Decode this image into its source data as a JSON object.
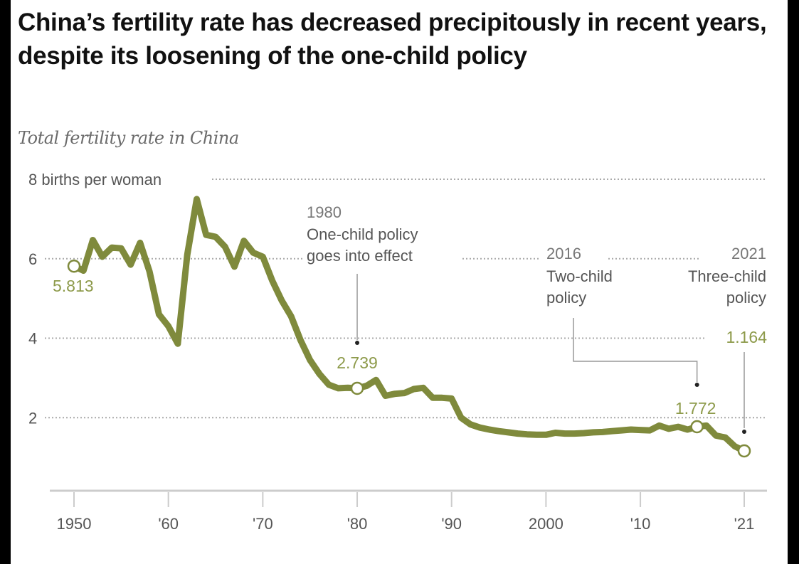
{
  "header": {
    "title": "China’s fertility rate has decreased precipitously in recent years, despite its loosening of the one-child policy",
    "subtitle": "Total fertility rate in China"
  },
  "colors": {
    "line": "#7f8a3c",
    "label": "#8d9a4a",
    "text": "#555555",
    "grid": "#aaaaaa",
    "axis": "#cccccc"
  },
  "chart_data": {
    "type": "line",
    "title": "China’s fertility rate has decreased precipitously in recent years, despite its loosening of the one-child policy",
    "subtitle": "Total fertility rate in China",
    "xlabel": "",
    "ylabel": "births per woman",
    "xlim": [
      1950,
      2021
    ],
    "ylim": [
      0,
      8
    ],
    "grid": true,
    "y_ticks": [
      {
        "value": 8,
        "label": "8 births per woman"
      },
      {
        "value": 6,
        "label": "6"
      },
      {
        "value": 4,
        "label": "4"
      },
      {
        "value": 2,
        "label": "2"
      }
    ],
    "x_ticks": [
      {
        "value": 1950,
        "label": "1950"
      },
      {
        "value": 1960,
        "label": "'60"
      },
      {
        "value": 1970,
        "label": "'70"
      },
      {
        "value": 1980,
        "label": "'80"
      },
      {
        "value": 1990,
        "label": "'90"
      },
      {
        "value": 2000,
        "label": "2000"
      },
      {
        "value": 2010,
        "label": "'10"
      },
      {
        "value": 2021,
        "label": "'21"
      }
    ],
    "series": [
      {
        "name": "Total fertility rate",
        "x": [
          1950,
          1951,
          1952,
          1953,
          1954,
          1955,
          1956,
          1957,
          1958,
          1959,
          1960,
          1961,
          1962,
          1963,
          1964,
          1965,
          1966,
          1967,
          1968,
          1969,
          1970,
          1971,
          1972,
          1973,
          1974,
          1975,
          1976,
          1977,
          1978,
          1979,
          1980,
          1981,
          1982,
          1983,
          1984,
          1985,
          1986,
          1987,
          1988,
          1989,
          1990,
          1991,
          1992,
          1993,
          1994,
          1995,
          1996,
          1997,
          1998,
          1999,
          2000,
          2001,
          2002,
          2003,
          2004,
          2005,
          2006,
          2007,
          2008,
          2009,
          2010,
          2011,
          2012,
          2013,
          2014,
          2015,
          2016,
          2017,
          2018,
          2019,
          2020,
          2021
        ],
        "values": [
          5.813,
          5.7,
          6.47,
          6.05,
          6.28,
          6.26,
          5.85,
          6.4,
          5.68,
          4.6,
          4.3,
          3.86,
          6.1,
          7.5,
          6.6,
          6.55,
          6.3,
          5.8,
          6.45,
          6.15,
          6.05,
          5.45,
          4.95,
          4.55,
          3.95,
          3.45,
          3.1,
          2.83,
          2.74,
          2.75,
          2.739,
          2.8,
          2.95,
          2.55,
          2.6,
          2.62,
          2.72,
          2.75,
          2.5,
          2.5,
          2.48,
          2.0,
          1.83,
          1.75,
          1.7,
          1.66,
          1.63,
          1.6,
          1.58,
          1.57,
          1.57,
          1.62,
          1.6,
          1.6,
          1.61,
          1.63,
          1.64,
          1.66,
          1.68,
          1.7,
          1.69,
          1.68,
          1.8,
          1.72,
          1.77,
          1.7,
          1.772,
          1.8,
          1.55,
          1.5,
          1.28,
          1.164
        ]
      }
    ],
    "highlighted_points": [
      {
        "x": 1950,
        "value": 5.813,
        "label": "5.813"
      },
      {
        "x": 1980,
        "value": 2.739,
        "label": "2.739"
      },
      {
        "x": 2016,
        "value": 1.772,
        "label": "1.772"
      },
      {
        "x": 2021,
        "value": 1.164,
        "label": "1.164"
      }
    ],
    "annotations": [
      {
        "x": 1980,
        "year": "1980",
        "lines": [
          "One-child policy",
          "goes into effect"
        ]
      },
      {
        "x": 2016,
        "year": "2016",
        "lines": [
          "Two-child",
          "policy"
        ]
      },
      {
        "x": 2021,
        "year": "2021",
        "lines": [
          "Three-child",
          "policy"
        ]
      }
    ]
  }
}
